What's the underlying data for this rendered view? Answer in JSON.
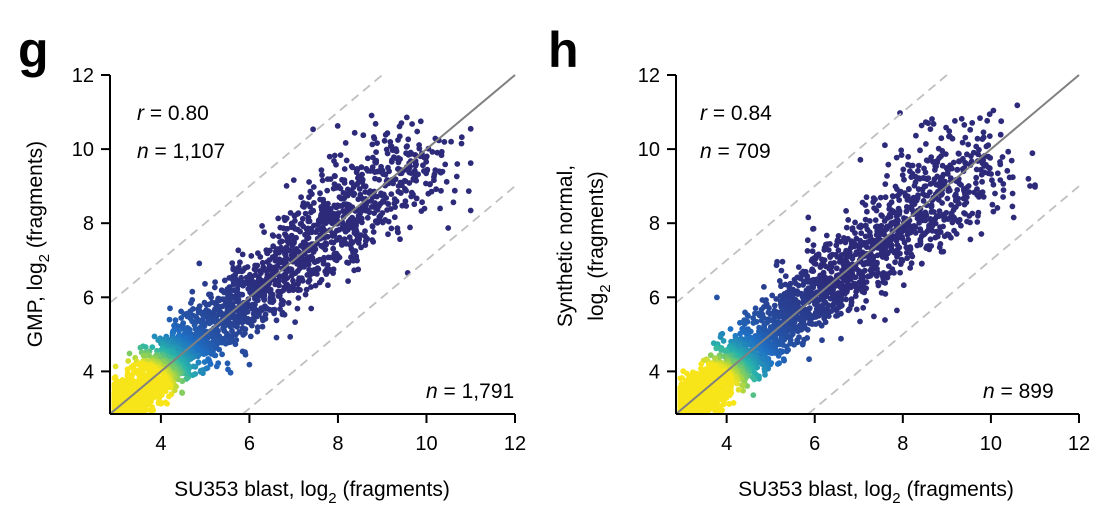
{
  "panels": [
    {
      "letter": "g",
      "ylabel_line1": "GMP, log",
      "ylabel_sub": "2",
      "ylabel_line1_suffix": " (fragments)",
      "ylabel_line2": "",
      "xlabel_main": "SU353 blast, log",
      "xlabel_sub": "2",
      "xlabel_suffix": " (fragments)",
      "r_label": "r",
      "r_value": " = 0.80",
      "n_label": "n",
      "n_top_value": " = 1,107",
      "n_bottom_value": " = 1,791"
    },
    {
      "letter": "h",
      "ylabel_line1": "Synthetic normal,",
      "ylabel_sub": "2",
      "ylabel_line2_prefix": "log",
      "ylabel_line2_suffix": " (fragments)",
      "xlabel_main": "SU353 blast, log",
      "xlabel_sub": "2",
      "xlabel_suffix": " (fragments)",
      "r_label": "r",
      "r_value": " = 0.84",
      "n_label": "n",
      "n_top_value": " = 709",
      "n_bottom_value": " = 899"
    }
  ],
  "chart_data": [
    {
      "type": "scatter",
      "panel": "g",
      "xlabel": "SU353 blast, log2 (fragments)",
      "ylabel": "GMP, log2 (fragments)",
      "xlim": [
        2.85,
        12
      ],
      "ylim": [
        2.85,
        12
      ],
      "x_ticks": [
        4,
        6,
        8,
        10,
        12
      ],
      "y_ticks": [
        4,
        6,
        8,
        10,
        12
      ],
      "identity_line": "y = x",
      "fold_change_lines": [
        "y = x + 3",
        "y = x - 3"
      ],
      "density_coloring": "blue (low) to yellow (high)",
      "density_peak": [
        3.5,
        3.5
      ],
      "annotations": [
        "r = 0.80",
        "n = 1,107",
        "n = 1,791"
      ],
      "grid": false,
      "seed": 7,
      "colors": {
        "low": "#2d2a7a",
        "mid": "#1f6fc4",
        "high": "#f7e51a",
        "identity": "#808080",
        "fold": "#c0c0c0"
      }
    },
    {
      "type": "scatter",
      "panel": "h",
      "xlabel": "SU353 blast, log2 (fragments)",
      "ylabel": "Synthetic normal, log2 (fragments)",
      "xlim": [
        2.85,
        12
      ],
      "ylim": [
        2.85,
        12
      ],
      "x_ticks": [
        4,
        6,
        8,
        10,
        12
      ],
      "y_ticks": [
        4,
        6,
        8,
        10,
        12
      ],
      "identity_line": "y = x",
      "fold_change_lines": [
        "y = x + 3",
        "y = x - 3"
      ],
      "density_coloring": "blue (low) to yellow (high)",
      "density_peak": [
        3.5,
        3.5
      ],
      "annotations": [
        "r = 0.84",
        "n = 709",
        "n = 899"
      ],
      "grid": false,
      "seed": 11,
      "colors": {
        "low": "#2d2a7a",
        "mid": "#1f6fc4",
        "high": "#f7e51a",
        "identity": "#808080",
        "fold": "#c0c0c0"
      }
    }
  ]
}
